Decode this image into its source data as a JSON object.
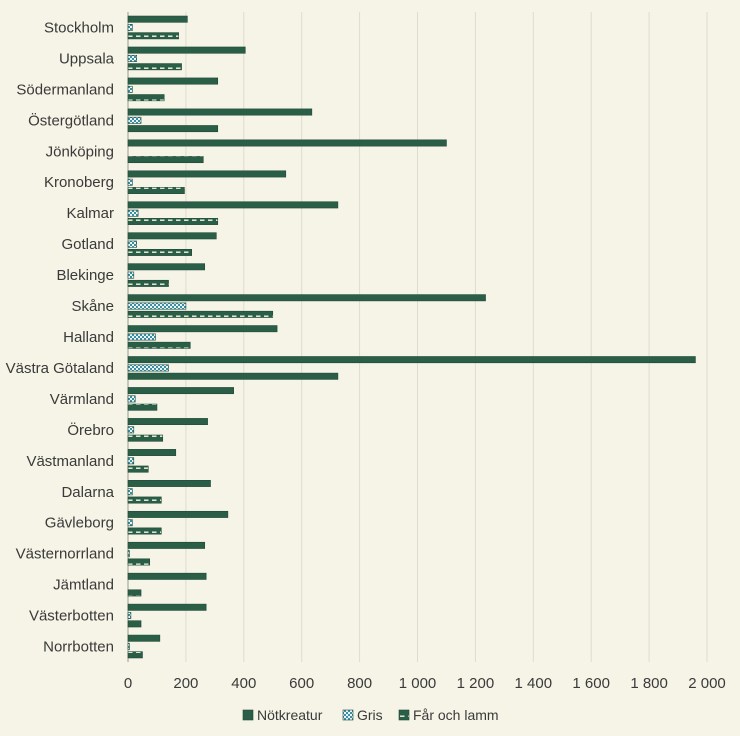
{
  "chart_data": {
    "type": "bar",
    "orientation": "horizontal",
    "categories": [
      "Stockholm",
      "Uppsala",
      "Södermanland",
      "Östergötland",
      "Jönköping",
      "Kronoberg",
      "Kalmar",
      "Gotland",
      "Blekinge",
      "Skåne",
      "Halland",
      "Västra Götaland",
      "Värmland",
      "Örebro",
      "Västmanland",
      "Dalarna",
      "Gävleborg",
      "Västernorrland",
      "Jämtland",
      "Västerbotten",
      "Norrbotten"
    ],
    "series": [
      {
        "name": "Nötkreatur",
        "color": "#2a5e47",
        "pattern": "solid",
        "values": [
          205,
          405,
          310,
          635,
          1100,
          545,
          725,
          305,
          265,
          1235,
          515,
          1960,
          365,
          275,
          165,
          285,
          345,
          265,
          270,
          270,
          110
        ]
      },
      {
        "name": "Gris",
        "color": "#3a8fa6",
        "pattern": "checker",
        "values": [
          15,
          30,
          15,
          45,
          0,
          15,
          35,
          30,
          20,
          200,
          95,
          140,
          25,
          20,
          20,
          15,
          15,
          5,
          0,
          10,
          5
        ]
      },
      {
        "name": "Får och lamm",
        "color": "#2a5e47",
        "pattern": "dashed",
        "values": [
          175,
          185,
          125,
          310,
          260,
          195,
          310,
          220,
          140,
          500,
          215,
          725,
          100,
          120,
          70,
          115,
          115,
          75,
          45,
          45,
          50
        ]
      }
    ],
    "xlim": [
      0,
      2000
    ],
    "xticks": [
      0,
      200,
      400,
      600,
      800,
      1000,
      1200,
      1400,
      1600,
      1800,
      2000
    ],
    "xtick_labels": [
      "0",
      "200",
      "400",
      "600",
      "800",
      "1 000",
      "1 200",
      "1 400",
      "1 600",
      "1 800",
      "2 000"
    ],
    "title": "",
    "xlabel": "",
    "ylabel": "",
    "grid": "vertical",
    "legend": "bottom"
  }
}
